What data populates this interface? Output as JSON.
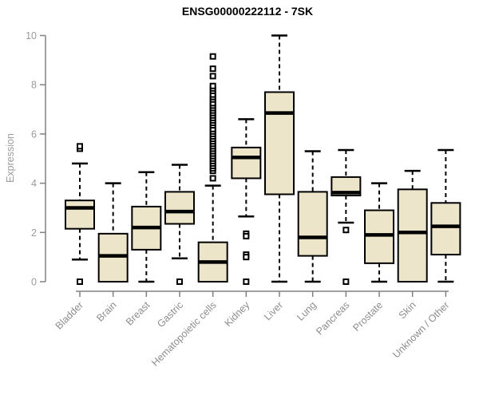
{
  "title": "ENSG00000222112 - 7SK",
  "chart_data": {
    "type": "boxplot",
    "title": "ENSG00000222112 - 7SK",
    "ylabel": "Expression",
    "xlabel": "",
    "ylim": [
      0,
      10
    ],
    "yticks": [
      0,
      2,
      4,
      6,
      8,
      10
    ],
    "grid": false,
    "legend": "none",
    "colors": {
      "box_fill": "#EDE5CA",
      "box_stroke": "#000000",
      "median": "#000000",
      "whisker": "#000000",
      "axis": "#808080",
      "tick_label": "#9A9A9A",
      "title": "#000000",
      "background": "#FFFFFF"
    },
    "categories": [
      "Bladder",
      "Brain",
      "Breast",
      "Gastric",
      "Hematopoietic cells",
      "Kidney",
      "Liver",
      "Lung",
      "Pancreas",
      "Prostate",
      "Skin",
      "Unknown / Other"
    ],
    "series": [
      {
        "category": "Bladder",
        "low": 0.9,
        "q1": 2.15,
        "median": 3.0,
        "q3": 3.3,
        "high": 4.8,
        "outliers": [
          5.4,
          5.5,
          0
        ]
      },
      {
        "category": "Brain",
        "low": null,
        "q1": 0,
        "median": 1.05,
        "q3": 1.95,
        "high": 4.0,
        "outliers": []
      },
      {
        "category": "Breast",
        "low": 0,
        "q1": 1.3,
        "median": 2.2,
        "q3": 3.05,
        "high": 4.45,
        "outliers": []
      },
      {
        "category": "Gastric",
        "low": 0.95,
        "q1": 2.35,
        "median": 2.85,
        "q3": 3.65,
        "high": 4.75,
        "outliers": [
          0
        ]
      },
      {
        "category": "Hematopoietic cells",
        "low": null,
        "q1": 0,
        "median": 0.8,
        "q3": 1.6,
        "high": 3.9,
        "outliers": [
          4.2,
          4.5,
          4.6,
          4.7,
          4.8,
          4.9,
          5.0,
          5.1,
          5.2,
          5.3,
          5.4,
          5.5,
          5.6,
          5.7,
          5.8,
          5.9,
          6.0,
          6.1,
          6.2,
          6.35,
          6.45,
          6.55,
          6.65,
          6.75,
          6.85,
          6.95,
          7.05,
          7.15,
          7.25,
          7.4,
          7.5,
          7.6,
          7.75,
          7.85,
          7.95,
          8.35,
          8.65,
          9.15
        ]
      },
      {
        "category": "Kidney",
        "low": 2.65,
        "q1": 4.2,
        "median": 5.05,
        "q3": 5.45,
        "high": 6.6,
        "outliers": [
          1.95,
          1.85,
          1.1,
          1.0,
          0
        ]
      },
      {
        "category": "Liver",
        "low": 0,
        "q1": 3.55,
        "median": 6.85,
        "q3": 7.7,
        "high": 10.0,
        "outliers": []
      },
      {
        "category": "Lung",
        "low": 0,
        "q1": 1.05,
        "median": 1.8,
        "q3": 3.65,
        "high": 5.3,
        "outliers": []
      },
      {
        "category": "Pancreas",
        "low": 2.4,
        "q1": 3.5,
        "median": 3.62,
        "q3": 4.25,
        "high": 5.35,
        "outliers": [
          2.1,
          0
        ]
      },
      {
        "category": "Prostate",
        "low": 0,
        "q1": 0.75,
        "median": 1.9,
        "q3": 2.9,
        "high": 4.0,
        "outliers": []
      },
      {
        "category": "Skin",
        "low": null,
        "q1": 0,
        "median": 2.0,
        "q3": 3.75,
        "high": 4.5,
        "outliers": []
      },
      {
        "category": "Unknown / Other",
        "low": 0,
        "q1": 1.1,
        "median": 2.25,
        "q3": 3.2,
        "high": 5.35,
        "outliers": []
      }
    ]
  }
}
